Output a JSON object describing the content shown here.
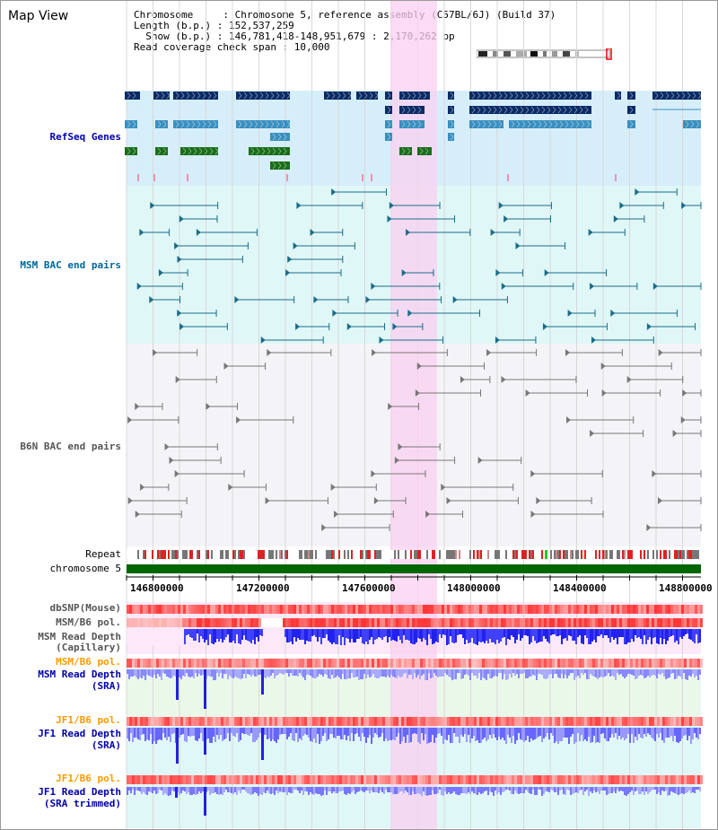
{
  "app": {
    "title": "Map View"
  },
  "info": {
    "chromosome_line": "Chromosome     : Chromosome 5, reference assembly (C57BL/6J) (Build 37)",
    "length_line": "Length (b.p.) : 152,537,259",
    "show_line": "  Show (b.p.) : 146,781,418-148,951,679 : 2,170,262 bp",
    "coverage_line": "Read coverage check span : 10,000"
  },
  "tracks": {
    "refseq": {
      "label": "RefSeq Genes",
      "color": "#0000aa"
    },
    "msm_bac": {
      "label": "MSM BAC end pairs",
      "color": "#006699"
    },
    "b6n_bac": {
      "label": "B6N BAC end pairs",
      "color": "#555555"
    },
    "repeat": {
      "label": "Repeat"
    },
    "chromosome": {
      "label": "chromosome 5",
      "color": "#006600"
    },
    "dbsnp": {
      "label": "dbSNP(Mouse)"
    },
    "msm_b6_pol": {
      "label": "MSM/B6 pol."
    },
    "msm_depth_cap": {
      "label1": "MSM Read Depth",
      "label2": "(Capillary)"
    },
    "msm_b6_pol_sra": {
      "label": "MSM/B6 pol.",
      "color": "#ff9900"
    },
    "msm_depth_sra": {
      "label1": "MSM Read Depth",
      "label2": "(SRA)",
      "color": "#0000aa"
    },
    "jf1_b6_pol": {
      "label": "JF1/B6 pol.",
      "color": "#ff9900"
    },
    "jf1_depth_sra": {
      "label1": "JF1 Read Depth",
      "label2": "(SRA)",
      "color": "#0000aa"
    },
    "jf1_b6_pol_2": {
      "label": "JF1/B6 pol.",
      "color": "#ff9900"
    },
    "jf1_depth_trim": {
      "label1": "JF1 Read Depth",
      "label2": "(SRA trimmed)",
      "color": "#0000aa"
    }
  },
  "ruler": {
    "ticks": [
      "146800000",
      "147200000",
      "147600000",
      "148000000",
      "148400000",
      "148800000"
    ]
  },
  "colors": {
    "refseq_bg": "#d6eefa",
    "msm_bg": "#e0f7f7",
    "b6n_bg": "#f4f4f8",
    "highlight": "#f9d0f0",
    "gene_dark": "#0a2b66",
    "gene_mid": "#3a8fbf",
    "gene_green": "#1a6e1a",
    "snp_red": "#ff3333",
    "depth_blue": "#2222ee"
  }
}
